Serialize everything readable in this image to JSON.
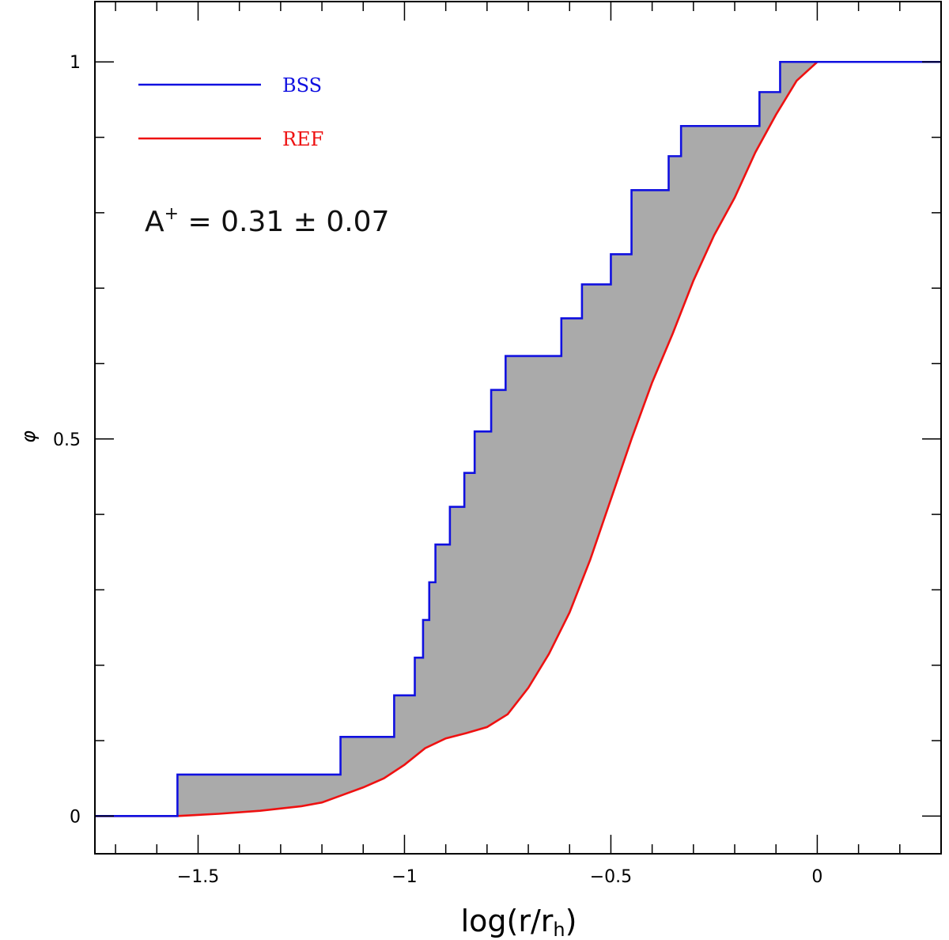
{
  "chart_data": {
    "type": "line",
    "xlabel_main": "log(r/r",
    "xlabel_sub": "h",
    "xlabel_close": ")",
    "ylabel": "φ",
    "xlim": [
      -1.75,
      0.3
    ],
    "ylim": [
      -0.05,
      1.08
    ],
    "x_ticks": [
      -1.5,
      -1,
      -0.5,
      0
    ],
    "x_tick_labels": [
      "−1.5",
      "−1",
      "−0.5",
      "0"
    ],
    "y_ticks": [
      0,
      0.5,
      1
    ],
    "y_tick_labels": [
      "0",
      "0.5",
      "1"
    ],
    "grid": false,
    "legend_position": "top-left",
    "series": [
      {
        "name": "BSS",
        "color": "#1010e0",
        "step": true,
        "x": [
          -1.75,
          -1.55,
          -1.55,
          -1.155,
          -1.155,
          -1.025,
          -1.025,
          -0.975,
          -0.975,
          -0.955,
          -0.955,
          -0.94,
          -0.94,
          -0.925,
          -0.925,
          -0.89,
          -0.89,
          -0.855,
          -0.855,
          -0.83,
          -0.83,
          -0.79,
          -0.79,
          -0.755,
          -0.755,
          -0.62,
          -0.62,
          -0.57,
          -0.57,
          -0.5,
          -0.5,
          -0.45,
          -0.45,
          -0.36,
          -0.36,
          -0.33,
          -0.33,
          -0.14,
          -0.14,
          -0.09,
          -0.09,
          0.0,
          0.0,
          0.3
        ],
        "y": [
          0.0,
          0.0,
          0.055,
          0.055,
          0.105,
          0.105,
          0.16,
          0.16,
          0.21,
          0.21,
          0.26,
          0.26,
          0.31,
          0.31,
          0.36,
          0.36,
          0.41,
          0.41,
          0.455,
          0.455,
          0.51,
          0.51,
          0.565,
          0.565,
          0.61,
          0.61,
          0.66,
          0.66,
          0.705,
          0.705,
          0.745,
          0.745,
          0.83,
          0.83,
          0.875,
          0.875,
          0.915,
          0.915,
          0.96,
          0.96,
          1.0,
          1.0,
          1.0,
          1.0
        ]
      },
      {
        "name": "REF",
        "color": "#ee1111",
        "step": false,
        "x": [
          -1.75,
          -1.55,
          -1.45,
          -1.35,
          -1.25,
          -1.2,
          -1.15,
          -1.1,
          -1.05,
          -1.0,
          -0.95,
          -0.9,
          -0.85,
          -0.8,
          -0.75,
          -0.7,
          -0.65,
          -0.6,
          -0.55,
          -0.5,
          -0.45,
          -0.4,
          -0.35,
          -0.3,
          -0.25,
          -0.2,
          -0.15,
          -0.1,
          -0.05,
          0.0,
          0.3
        ],
        "y": [
          0.0,
          0.0,
          0.003,
          0.007,
          0.013,
          0.018,
          0.028,
          0.038,
          0.05,
          0.068,
          0.09,
          0.103,
          0.11,
          0.118,
          0.135,
          0.17,
          0.215,
          0.27,
          0.34,
          0.42,
          0.5,
          0.575,
          0.64,
          0.71,
          0.77,
          0.82,
          0.88,
          0.93,
          0.975,
          1.0,
          1.0
        ]
      }
    ],
    "annotation": {
      "prefix": "A",
      "sup": "+",
      "text": " = 0.31 ± 0.07"
    },
    "fill_color": "#aaaaaa"
  }
}
